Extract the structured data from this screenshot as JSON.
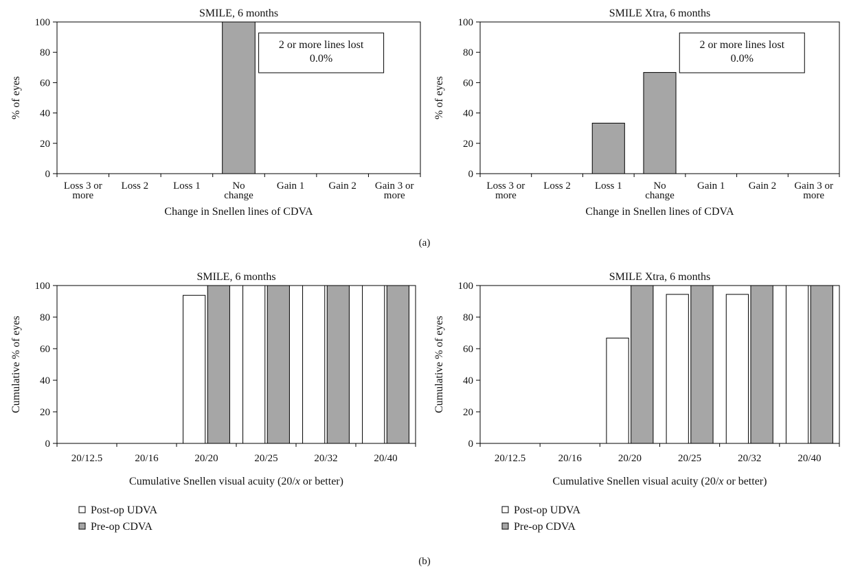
{
  "colors": {
    "filled": "#a6a6a6",
    "open": "#ffffff",
    "stroke": "#000000"
  },
  "panel_labels": {
    "a": "(a)",
    "b": "(b)"
  },
  "chart_data": [
    {
      "type": "bar",
      "title": "SMILE, 6 months",
      "xlabel": "Change in Snellen lines of CDVA",
      "ylabel": "% of eyes",
      "ylim": [
        0,
        100
      ],
      "yticks": [
        0,
        20,
        40,
        60,
        80,
        100
      ],
      "categories": [
        [
          "Loss 3 or",
          "more"
        ],
        [
          "Loss 2"
        ],
        [
          "Loss 1"
        ],
        [
          "No",
          "change"
        ],
        [
          "Gain 1"
        ],
        [
          "Gain 2"
        ],
        [
          "Gain 3 or",
          "more"
        ]
      ],
      "values": [
        0,
        0,
        0,
        100,
        0,
        0,
        0
      ],
      "fill": "filled",
      "annotation": [
        "2 or more lines lost",
        "0.0%"
      ]
    },
    {
      "type": "bar",
      "title": "SMILE Xtra, 6 months",
      "xlabel": "Change in Snellen lines of CDVA",
      "ylabel": "% of eyes",
      "ylim": [
        0,
        100
      ],
      "yticks": [
        0,
        20,
        40,
        60,
        80,
        100
      ],
      "categories": [
        [
          "Loss 3 or",
          "more"
        ],
        [
          "Loss 2"
        ],
        [
          "Loss 1"
        ],
        [
          "No",
          "change"
        ],
        [
          "Gain 1"
        ],
        [
          "Gain 2"
        ],
        [
          "Gain 3 or",
          "more"
        ]
      ],
      "values": [
        0,
        0,
        33.3,
        66.7,
        0,
        0,
        0
      ],
      "fill": "filled",
      "annotation": [
        "2 or more lines lost",
        "0.0%"
      ]
    },
    {
      "type": "bar",
      "title": "SMILE, 6 months",
      "xlabel": "Cumulative Snellen visual acuity (20/x or better)",
      "ylabel": "Cumulative % of eyes",
      "ylim": [
        0,
        100
      ],
      "yticks": [
        0,
        20,
        40,
        60,
        80,
        100
      ],
      "categories": [
        "20/12.5",
        "20/16",
        "20/20",
        "20/25",
        "20/32",
        "20/40"
      ],
      "series": [
        {
          "name": "Post-op UDVA",
          "values": [
            0,
            0,
            93.8,
            100,
            100,
            100
          ],
          "fill": "open"
        },
        {
          "name": "Pre-op CDVA",
          "values": [
            0,
            0,
            100,
            100,
            100,
            100
          ],
          "fill": "filled"
        }
      ],
      "legend_position": "bottom-left"
    },
    {
      "type": "bar",
      "title": "SMILE Xtra, 6 months",
      "xlabel": "Cumulative Snellen visual acuity (20/x or better)",
      "ylabel": "Cumulative % of eyes",
      "ylim": [
        0,
        100
      ],
      "yticks": [
        0,
        20,
        40,
        60,
        80,
        100
      ],
      "categories": [
        "20/12.5",
        "20/16",
        "20/20",
        "20/25",
        "20/32",
        "20/40"
      ],
      "series": [
        {
          "name": "Post-op UDVA",
          "values": [
            0,
            0,
            66.7,
            94.4,
            94.4,
            100
          ],
          "fill": "open"
        },
        {
          "name": "Pre-op CDVA",
          "values": [
            0,
            0,
            100,
            100,
            100,
            100
          ],
          "fill": "filled"
        }
      ],
      "legend_position": "bottom-left"
    }
  ]
}
